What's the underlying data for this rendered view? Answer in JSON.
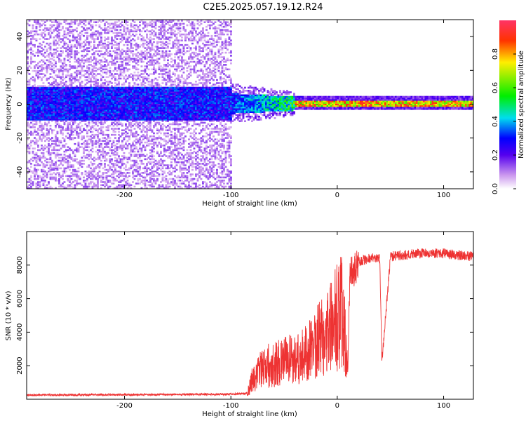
{
  "figure": {
    "title": "C2E5.2025.057.19.12.R24"
  },
  "chart_data": [
    {
      "type": "heatmap",
      "xlabel": "Height of straight line (km)",
      "ylabel": "Frequency (Hz)",
      "xlim": [
        -292,
        128
      ],
      "ylim": [
        -50,
        50
      ],
      "xticks": [
        -200,
        -100,
        0,
        100
      ],
      "yticks": [
        -40,
        -20,
        0,
        20,
        40
      ],
      "colorbar": {
        "label": "Normalized spectral amplitude",
        "range": [
          0,
          1
        ],
        "ticks": [
          0.0,
          0.2,
          0.4,
          0.6,
          0.8
        ],
        "colormap": "rainbow (purple → blue → cyan → green → yellow → red)"
      },
      "regions": [
        {
          "x": [
            -292,
            -100
          ],
          "description": "broadband noise",
          "band_halfwidth_hz": 50,
          "core_halfwidth_hz": 10,
          "amplitude": 0.15
        },
        {
          "x": [
            -100,
            -40
          ],
          "description": "narrowing band",
          "band_halfwidth_hz": 10,
          "amplitude": 0.4
        },
        {
          "x": [
            -40,
            128
          ],
          "description": "narrow carrier near 0 Hz",
          "band_halfwidth_hz": 3,
          "amplitude": 0.95
        }
      ],
      "grid": false
    },
    {
      "type": "line",
      "xlabel": "Height of straight line (km)",
      "ylabel": "SNR (10 * v/v)",
      "xlim": [
        -292,
        128
      ],
      "ylim": [
        0,
        10000
      ],
      "xticks": [
        -200,
        -100,
        0,
        100
      ],
      "yticks": [
        2000,
        4000,
        6000,
        8000
      ],
      "series": [
        {
          "color": "#ee3333",
          "x": [
            -292,
            -250,
            -200,
            -150,
            -100,
            -85,
            -80,
            -70,
            -60,
            -50,
            -40,
            -30,
            -20,
            -10,
            0,
            5,
            10,
            12,
            15,
            20,
            30,
            40,
            42,
            50,
            60,
            80,
            100,
            128
          ],
          "y": [
            250,
            260,
            270,
            280,
            300,
            350,
            1500,
            2500,
            2800,
            3000,
            3200,
            3500,
            4500,
            5500,
            6500,
            7000,
            2000,
            8000,
            7800,
            8200,
            8400,
            8400,
            2200,
            8500,
            8600,
            8700,
            8700,
            8500
          ]
        }
      ],
      "grid": false
    }
  ]
}
